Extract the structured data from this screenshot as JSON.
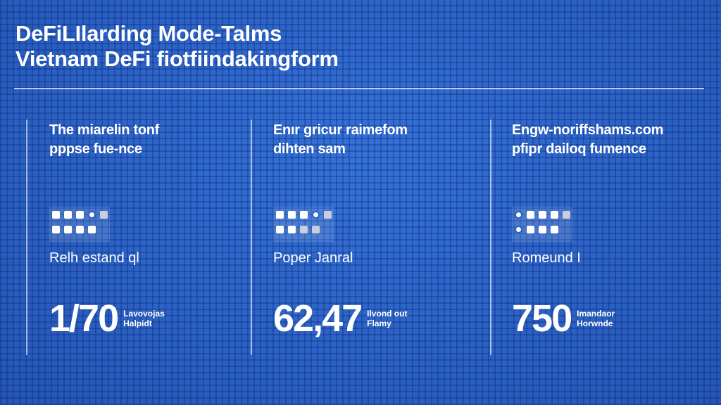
{
  "header": {
    "title_line1": "DeFiLIlarding Mode-Talms",
    "title_line2": "Vietnam DeFi fiotfiindakingform"
  },
  "columns": [
    {
      "heading_line1": "The miarelin tonf",
      "heading_line2": "pppse fue-nce",
      "subtitle": "Relh estand ql",
      "value": "1/70",
      "value_label_line1": "Lavovojas",
      "value_label_line2": "Halpidt"
    },
    {
      "heading_line1": "Enır gricur raimefom",
      "heading_line2": "dihten sam",
      "subtitle": "Poper Janral",
      "value": "62,47",
      "value_label_line1": "Ilvond out",
      "value_label_line2": "Flamy"
    },
    {
      "heading_line1": "Engw-noriffshams.com",
      "heading_line2": "pfipr dailoq fumence",
      "subtitle": "Romeund I",
      "value": "750",
      "value_label_line1": "Imandaor",
      "value_label_line2": "Horwnde"
    }
  ],
  "colors": {
    "background": "#2c63c4",
    "text": "#ffffff"
  }
}
